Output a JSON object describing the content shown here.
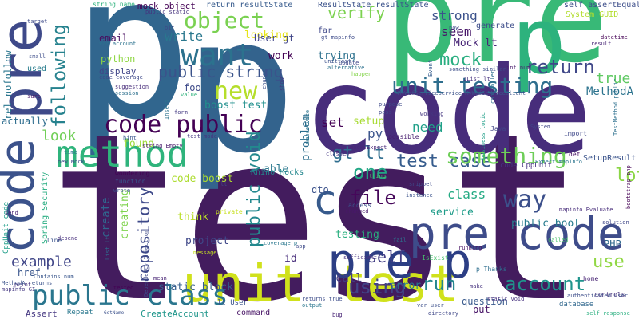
{
  "words": [
    {
      "text": "p",
      "color": "#31668e"
    },
    {
      "text": "test",
      "color": "#431c5e"
    },
    {
      "text": "p",
      "color": "#33638d"
    },
    {
      "text": "code",
      "color": "#472d7b"
    },
    {
      "text": "pre",
      "color": "#38b977"
    },
    {
      "text": "p",
      "color": "#2db27d"
    },
    {
      "text": "pre",
      "color": "#3e4989"
    },
    {
      "text": "code",
      "color": "#3b528b"
    },
    {
      "text": "unit test",
      "color": "#d0e11c"
    },
    {
      "text": "pre code",
      "color": "#3e4c8a"
    },
    {
      "text": "pre p",
      "color": "#2c3e84"
    },
    {
      "text": "method",
      "color": "#2fb47c"
    },
    {
      "text": "want",
      "color": "#2c728e"
    },
    {
      "text": "object",
      "color": "#7ad151"
    },
    {
      "text": "code public",
      "color": "#440154"
    },
    {
      "text": "public class",
      "color": "#2a768e"
    },
    {
      "text": "unit testing",
      "color": "#2e6e8e"
    },
    {
      "text": "test case",
      "color": "#365c8d"
    },
    {
      "text": "new",
      "color": "#b5de2b"
    },
    {
      "text": "something",
      "color": "#6ece58"
    },
    {
      "text": "way",
      "color": "#3c508b"
    },
    {
      "text": "following",
      "color": "#26828e"
    },
    {
      "text": "return",
      "color": "#3f4788"
    },
    {
      "text": "mock",
      "color": "#28ae80"
    },
    {
      "text": "one",
      "color": "#22a785"
    },
    {
      "text": "repository",
      "color": "#3e4989"
    },
    {
      "text": "using",
      "color": "#414487"
    },
    {
      "text": "public string",
      "color": "#3a538b"
    },
    {
      "text": "public void",
      "color": "#23898e"
    },
    {
      "text": "c",
      "color": "#375a8c"
    },
    {
      "text": "self",
      "color": "#433e85"
    },
    {
      "text": "run",
      "color": "#24878e"
    },
    {
      "text": "file",
      "color": "#46075a"
    },
    {
      "text": "account",
      "color": "#1f948c"
    },
    {
      "text": "use",
      "color": "#90d743"
    },
    {
      "text": "gt lt",
      "color": "#2e6d8e"
    },
    {
      "text": "lot",
      "color": "#8bd646"
    },
    {
      "text": "verify",
      "color": "#7cd250"
    },
    {
      "text": "strong",
      "color": "#3b518b"
    },
    {
      "text": "seem",
      "color": "#481769"
    },
    {
      "text": "Mock lt",
      "color": "#482677"
    },
    {
      "text": "true",
      "color": "#5ec962"
    },
    {
      "text": "MethodA",
      "color": "#2c738e"
    },
    {
      "text": "example",
      "color": "#404688"
    },
    {
      "text": "write",
      "color": "#2a788e"
    },
    {
      "text": "email",
      "color": "#470e61"
    },
    {
      "text": "python",
      "color": "#8fd744"
    },
    {
      "text": "work",
      "color": "#440154"
    },
    {
      "text": "trying",
      "color": "#2c718e"
    },
    {
      "text": "looking",
      "color": "#e7e419"
    },
    {
      "text": "code boost",
      "color": "#addc30"
    },
    {
      "text": "boost test",
      "color": "#21908d"
    },
    {
      "text": "able",
      "color": "#2a778e"
    },
    {
      "text": "found",
      "color": "#9dd93b"
    },
    {
      "text": "look",
      "color": "#70cf57"
    },
    {
      "text": "need",
      "color": "#1fa088"
    },
    {
      "text": "set",
      "color": "#440154"
    },
    {
      "text": "setup",
      "color": "#a8db34"
    },
    {
      "text": "py",
      "color": "#3a548c"
    },
    {
      "text": "class",
      "color": "#24aa83"
    },
    {
      "text": "service",
      "color": "#1e9c89"
    },
    {
      "text": "public bool",
      "color": "#287c8e"
    },
    {
      "text": "call",
      "color": "#433d84"
    },
    {
      "text": "testing",
      "color": "#29af7f"
    },
    {
      "text": "problem",
      "color": "#2e6f8e"
    },
    {
      "text": "create",
      "color": "#31668e"
    },
    {
      "text": "creating",
      "color": "#7fd34e"
    },
    {
      "text": "think",
      "color": "#bade28"
    },
    {
      "text": "project",
      "color": "#3f4788"
    },
    {
      "text": "static block",
      "color": "#355e8d"
    },
    {
      "text": "id",
      "color": "#472d7b"
    },
    {
      "text": "error",
      "color": "#2a788e"
    },
    {
      "text": "rel nofollow",
      "color": "#2a768e"
    },
    {
      "text": "href",
      "color": "#39568c"
    },
    {
      "text": "foo",
      "color": "#3e4a89"
    },
    {
      "text": "dto",
      "color": "#3b528b"
    },
    {
      "text": "question",
      "color": "#38598c"
    },
    {
      "text": "put",
      "color": "#481467"
    },
    {
      "text": "PHP",
      "color": "#306a8e"
    },
    {
      "text": "actually",
      "color": "#2e6d8e"
    },
    {
      "text": "User gt",
      "color": "#404588"
    },
    {
      "text": "display",
      "color": "#404588"
    },
    {
      "text": "mock object",
      "color": "#440154"
    },
    {
      "text": "ResultState resultState",
      "color": "#3b528b"
    },
    {
      "text": "return resultState",
      "color": "#375b8d"
    },
    {
      "text": "self assertEqual",
      "color": "#3d4e8a"
    },
    {
      "text": "System GUID",
      "color": "#b2dd2d"
    },
    {
      "text": "generate",
      "color": "#3d4d8a"
    },
    {
      "text": "far",
      "color": "#3f4889"
    },
    {
      "text": "string name",
      "color": "#2db27d"
    },
    {
      "text": "public static",
      "color": "#46327e"
    },
    {
      "text": "target",
      "color": "#3e4a89"
    },
    {
      "text": "small",
      "color": "#3d4d8a"
    },
    {
      "text": "used",
      "color": "#287d8e"
    },
    {
      "text": "Spring Security",
      "color": "#27ad81"
    },
    {
      "text": "CppUnit code",
      "color": "#1f9e89"
    },
    {
      "text": "code CppUnit",
      "color": "#46337f"
    },
    {
      "text": "Rhino Mocks",
      "color": "#24878e"
    },
    {
      "text": "SetupResult",
      "color": "#3a538b"
    },
    {
      "text": "Assert",
      "color": "#453781"
    },
    {
      "text": "CreateAccount",
      "color": "#1f968b"
    },
    {
      "text": "command",
      "color": "#471365"
    },
    {
      "text": "lt User",
      "color": "#3a548c"
    },
    {
      "text": "database",
      "color": "#31688e"
    },
    {
      "text": "controls",
      "color": "#46327e"
    },
    {
      "text": "Repeat",
      "color": "#2a788e"
    },
    {
      "text": "GetName",
      "color": "#3b518b"
    },
    {
      "text": "IsExist",
      "color": "#4ac16d"
    },
    {
      "text": "p Thanks",
      "color": "#2e6e8e"
    },
    {
      "text": "home",
      "color": "#482475"
    },
    {
      "text": "Java",
      "color": "#414487"
    },
    {
      "text": "def",
      "color": "#471063"
    },
    {
      "text": "import",
      "color": "#3f4889"
    },
    {
      "text": "access",
      "color": "#3b528b"
    },
    {
      "text": "private",
      "color": "#c8e020"
    },
    {
      "text": "wondering",
      "color": "#440154"
    },
    {
      "text": "function",
      "color": "#39568c"
    },
    {
      "text": "possible",
      "color": "#481d6f"
    },
    {
      "text": "line",
      "color": "#3b528b"
    },
    {
      "text": "print",
      "color": "#46327e"
    },
    {
      "text": "message",
      "color": "#c5e021"
    },
    {
      "text": "app",
      "color": "#3e4a89"
    },
    {
      "text": "fail",
      "color": "#2d718e"
    },
    {
      "text": "thing",
      "color": "#4ac16d"
    },
    {
      "text": "happen",
      "color": "#84d44b"
    },
    {
      "text": "Insert",
      "color": "#2c738e"
    },
    {
      "text": "value",
      "color": "#2eb37c"
    },
    {
      "text": "form",
      "color": "#443a83"
    },
    {
      "text": "test mode",
      "color": "#453882"
    },
    {
      "text": "business logic",
      "color": "#1f9f88"
    },
    {
      "text": "something similar",
      "color": "#3d4e8a"
    },
    {
      "text": "working",
      "color": "#453781"
    },
    {
      "text": "Event",
      "color": "#365d8d"
    },
    {
      "text": "int num",
      "color": "#481a6c"
    },
    {
      "text": "datetime",
      "color": "#440154"
    },
    {
      "text": "result",
      "color": "#482576"
    },
    {
      "text": "TestMethod public",
      "color": "#2d708e"
    },
    {
      "text": "controller",
      "color": "#2e6f8e"
    },
    {
      "text": "alternative",
      "color": "#2d718e"
    },
    {
      "text": "unittest",
      "color": "#3b518b"
    },
    {
      "text": "session",
      "color": "#2d708e"
    },
    {
      "text": "suggestion",
      "color": "#472c7a"
    },
    {
      "text": "gt mapinfo",
      "color": "#3e4c8a"
    },
    {
      "text": "Expect mapinfo",
      "color": "#2b758e"
    },
    {
      "text": "mapinfo Evaluate",
      "color": "#472c7a"
    },
    {
      "text": "solution",
      "color": "#3f4788"
    },
    {
      "text": "bootstrap php",
      "color": "#440154"
    },
    {
      "text": "System",
      "color": "#3f4788"
    },
    {
      "text": "mock Expect",
      "color": "#482878"
    },
    {
      "text": "changed",
      "color": "#48186a"
    },
    {
      "text": "instance",
      "color": "#3b528b"
    },
    {
      "text": "snippet",
      "color": "#3e4989"
    },
    {
      "text": "called",
      "color": "#4ac16d"
    },
    {
      "text": "running",
      "color": "#471365"
    },
    {
      "text": "make",
      "color": "#46327e"
    },
    {
      "text": "static void",
      "color": "#46307e"
    },
    {
      "text": "var user",
      "color": "#3c4f8a"
    },
    {
      "text": "directory",
      "color": "#3f4788"
    },
    {
      "text": "authenticated user",
      "color": "#3d4d8a"
    },
    {
      "text": "self response",
      "color": "#29af7f"
    },
    {
      "text": "bug",
      "color": "#482475"
    },
    {
      "text": "returns true",
      "color": "#3d4d8a"
    },
    {
      "text": "output",
      "color": "#2a768e"
    },
    {
      "text": "sufficient",
      "color": "#46337f"
    },
    {
      "text": "coverage p",
      "color": "#2a788e"
    },
    {
      "text": "mean",
      "color": "#482475"
    },
    {
      "text": "tested",
      "color": "#440154"
    },
    {
      "text": "Contains num",
      "color": "#39568c"
    },
    {
      "text": "MethodA returns",
      "color": "#3b528b"
    },
    {
      "text": "mapinfo GI",
      "color": "#453882"
    },
    {
      "text": "sure",
      "color": "#481769"
    },
    {
      "text": "code coverage",
      "color": "#3e4989"
    },
    {
      "text": "var account",
      "color": "#2c728e"
    },
    {
      "text": "bit",
      "color": "#3f4788"
    },
    {
      "text": "string Empty",
      "color": "#48196b"
    },
    {
      "text": "wrote",
      "color": "#3c4f8a"
    },
    {
      "text": "depend",
      "color": "#472e7c"
    },
    {
      "text": "send",
      "color": "#482475"
    },
    {
      "text": "time",
      "color": "#2d708e"
    },
    {
      "text": "hint",
      "color": "#39568c"
    },
    {
      "text": "now",
      "color": "#3f4788"
    },
    {
      "text": "webservice",
      "color": "#2b748e"
    },
    {
      "text": "classes",
      "color": "#453781"
    },
    {
      "text": "purpose",
      "color": "#3e4989"
    },
    {
      "text": "pass",
      "color": "#3f4788"
    },
    {
      "text": "new Mock",
      "color": "#3e4c8a"
    },
    {
      "text": "change",
      "color": "#3b528b"
    },
    {
      "text": "show",
      "color": "#453882"
    },
    {
      "text": "update",
      "color": "#3f4788"
    },
    {
      "text": "lt",
      "color": "#3e4a89"
    },
    {
      "text": "MyWcfServiceService MyWcfServiceClient",
      "color": "#3b528b"
    },
    {
      "text": "List lt",
      "color": "#2e6e8e"
    },
    {
      "text": "IList lt",
      "color": "#46307e"
    },
    {
      "text": "Dependency Injection",
      "color": "#3e4989"
    }
  ]
}
